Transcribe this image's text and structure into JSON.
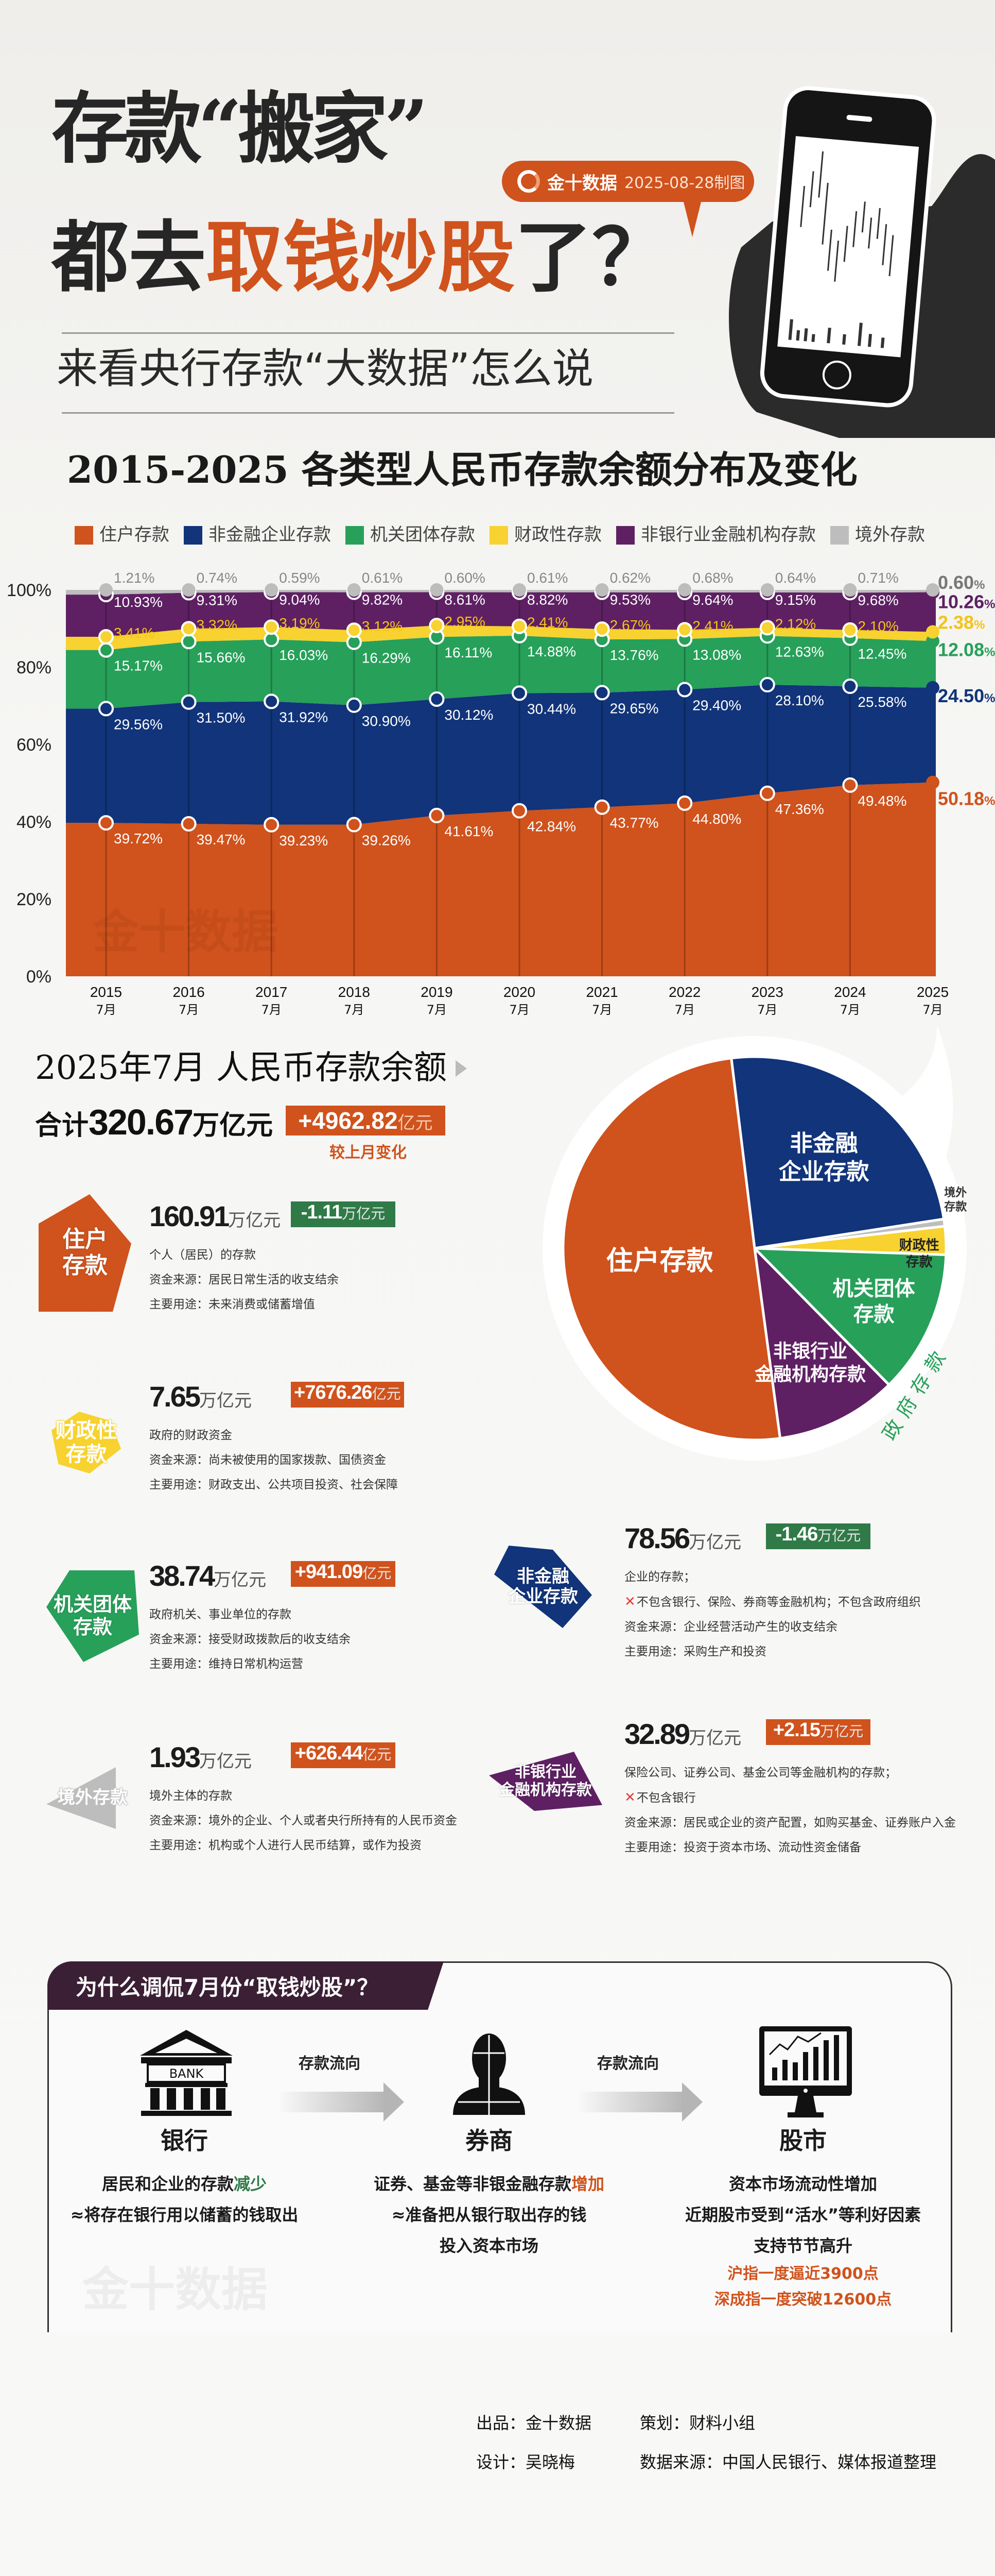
{
  "header": {
    "title_line1": "存款“搬家”",
    "title_line2_a": "都去",
    "title_line2_b": "取钱炒股",
    "title_line2_c": "了？",
    "subtitle": "来看央行存款“大数据”怎么说",
    "brand": "金十数据",
    "date": "2025-08-28制图"
  },
  "watermark": "金十数据",
  "colors": {
    "accent": "#d0521c",
    "down": "#2f7a47",
    "header_dark": "#3a1f35"
  },
  "chart_data": {
    "type": "area",
    "stacked": true,
    "title": "2015-2025 各类型人民币存款余额分布及变化",
    "categories": [
      "2015",
      "2016",
      "2017",
      "2018",
      "2019",
      "2020",
      "2021",
      "2022",
      "2023",
      "2024",
      "2025"
    ],
    "category_sub": "7月",
    "yticks": [
      "0%",
      "20%",
      "40%",
      "60%",
      "80%",
      "100%"
    ],
    "ylim": [
      0,
      100
    ],
    "unit": "%",
    "legend_position": "top",
    "series": [
      {
        "name": "住户存款",
        "color": "#d0521c",
        "values": [
          39.72,
          39.47,
          39.23,
          39.26,
          41.61,
          42.84,
          43.77,
          44.8,
          47.36,
          49.48,
          50.18
        ]
      },
      {
        "name": "非金融企业存款",
        "color": "#11347a",
        "values": [
          29.56,
          31.5,
          31.92,
          30.9,
          30.12,
          30.44,
          29.65,
          29.4,
          28.1,
          25.58,
          24.5
        ]
      },
      {
        "name": "机关团体存款",
        "color": "#27a05a",
        "values": [
          15.17,
          15.66,
          16.03,
          16.29,
          16.11,
          14.88,
          13.76,
          13.08,
          12.63,
          12.45,
          12.08
        ]
      },
      {
        "name": "财政性存款",
        "color": "#f7d230",
        "values": [
          3.41,
          3.32,
          3.19,
          3.12,
          2.95,
          2.41,
          2.67,
          2.41,
          2.12,
          2.1,
          2.38
        ]
      },
      {
        "name": "非银行业金融机构存款",
        "color": "#5e2063",
        "values": [
          10.93,
          9.31,
          9.04,
          9.82,
          8.61,
          8.82,
          9.53,
          9.64,
          9.15,
          9.68,
          10.26
        ]
      },
      {
        "name": "境外存款",
        "color": "#bdbdbd",
        "values": [
          1.21,
          0.74,
          0.59,
          0.61,
          0.6,
          0.61,
          0.62,
          0.68,
          0.64,
          0.71,
          0.6
        ]
      }
    ]
  },
  "summary": {
    "title": "2025年7月 人民币存款余额",
    "total_prefix": "合计",
    "total_value": "320.67",
    "total_unit": "万亿元",
    "change_value": "+4962.82",
    "change_unit": "亿元",
    "change_note": "较上月变化"
  },
  "cards": [
    {
      "id": "housing",
      "label": [
        "住户",
        "存款"
      ],
      "amount": "160.91",
      "unit": "万亿元",
      "change": "-1.11",
      "change_unit": "万亿元",
      "direction": "down",
      "lines": [
        {
          "text": "个人（居民）的存款"
        },
        {
          "text": "资金来源：居民日常生活的收支结余"
        },
        {
          "text": "主要用途：未来消费或储蓄增值"
        }
      ]
    },
    {
      "id": "fiscal",
      "label": [
        "财政性",
        "存款"
      ],
      "amount": "7.65",
      "unit": "万亿元",
      "change": "+7676.26",
      "change_unit": "亿元",
      "direction": "up",
      "lines": [
        {
          "text": "政府的财政资金"
        },
        {
          "text": "资金来源：尚未被使用的国家拨款、国债资金"
        },
        {
          "text": "主要用途：财政支出、公共项目投资、社会保障"
        }
      ]
    },
    {
      "id": "institutions",
      "label": [
        "机关团体",
        "存款"
      ],
      "amount": "38.74",
      "unit": "万亿元",
      "change": "+941.09",
      "change_unit": "亿元",
      "direction": "up",
      "lines": [
        {
          "text": "政府机关、事业单位的存款"
        },
        {
          "text": "资金来源：接受财政拨款后的收支结余"
        },
        {
          "text": "主要用途：维持日常机构运营"
        }
      ]
    },
    {
      "id": "overseas",
      "label": [
        "境外存款"
      ],
      "amount": "1.93",
      "unit": "万亿元",
      "change": "+626.44",
      "change_unit": "亿元",
      "direction": "up",
      "lines": [
        {
          "text": "境外主体的存款"
        },
        {
          "text": "资金来源：境外的企业、个人或者央行所持有的人民币资金"
        },
        {
          "text": "主要用途：机构或个人进行人民币结算，或作为投资"
        }
      ]
    },
    {
      "id": "nonfin",
      "label": [
        "非金融",
        "企业存款"
      ],
      "amount": "78.56",
      "unit": "万亿元",
      "change": "-1.46",
      "change_unit": "万亿元",
      "direction": "down",
      "lines": [
        {
          "text": "企业的存款；"
        },
        {
          "text": "不包含银行、保险、券商等金融机构；不包含政府组织",
          "excluded": true
        },
        {
          "text": "资金来源：企业经营活动产生的收支结余"
        },
        {
          "text": "主要用途：采购生产和投资"
        }
      ]
    },
    {
      "id": "nonbank",
      "label": [
        "非银行业",
        "金融机构存款"
      ],
      "amount": "32.89",
      "unit": "万亿元",
      "change": "+2.15",
      "change_unit": "万亿元",
      "direction": "up",
      "lines": [
        {
          "text": "保险公司、证券公司、基金公司等金融机构的存款；"
        },
        {
          "text": "不包含银行",
          "excluded": true
        },
        {
          "text": "资金来源：居民或企业的资产配置，如购买基金、证券账户入金"
        },
        {
          "text": "主要用途：投资于资本市场、流动性资金储备"
        }
      ]
    }
  ],
  "pie": {
    "group_label": "政府存款",
    "slices": [
      {
        "label": [
          "非金融",
          "企业存款"
        ],
        "value": 24.5,
        "color": "#11347a"
      },
      {
        "label": [
          "境外",
          "存款"
        ],
        "value": 0.6,
        "color": "#bdbdbd"
      },
      {
        "label": [
          "财政性",
          "存款"
        ],
        "value": 2.38,
        "color": "#f7d230"
      },
      {
        "label": [
          "机关团体",
          "存款"
        ],
        "value": 12.08,
        "color": "#27a05a"
      },
      {
        "label": [
          "非银行业",
          "金融机构存款"
        ],
        "value": 10.26,
        "color": "#5e2063"
      },
      {
        "label": [
          "住户存款"
        ],
        "value": 50.18,
        "color": "#d0521c"
      }
    ]
  },
  "flow": {
    "title": "为什么调侃7月份“取钱炒股”？",
    "arrow_label": "存款流向",
    "bank_sign": "BANK",
    "cols": [
      {
        "title": "银行",
        "l1a": "居民和企业的存款",
        "l1b": "减少",
        "l2": "≈将存在银行用以储蓄的钱取出"
      },
      {
        "title": "券商",
        "l1a": "证券、基金等非银金融存款",
        "l1b": "增加",
        "l2": "≈准备把从银行取出存的钱",
        "l3": "投入资本市场"
      },
      {
        "title": "股市",
        "l1a": "资本市场流动性增加",
        "l2": "近期股市受到“活水”等利好因素",
        "l3": "支持节节高升",
        "o1": "沪指一度逼近3900点",
        "o2": "深成指一度突破12600点"
      }
    ]
  },
  "footer": {
    "producer": "出品：金十数据",
    "planner": "策划：财料小组",
    "designer": "设计：吴晓梅",
    "source": "数据来源：中国人民银行、媒体报道整理"
  }
}
